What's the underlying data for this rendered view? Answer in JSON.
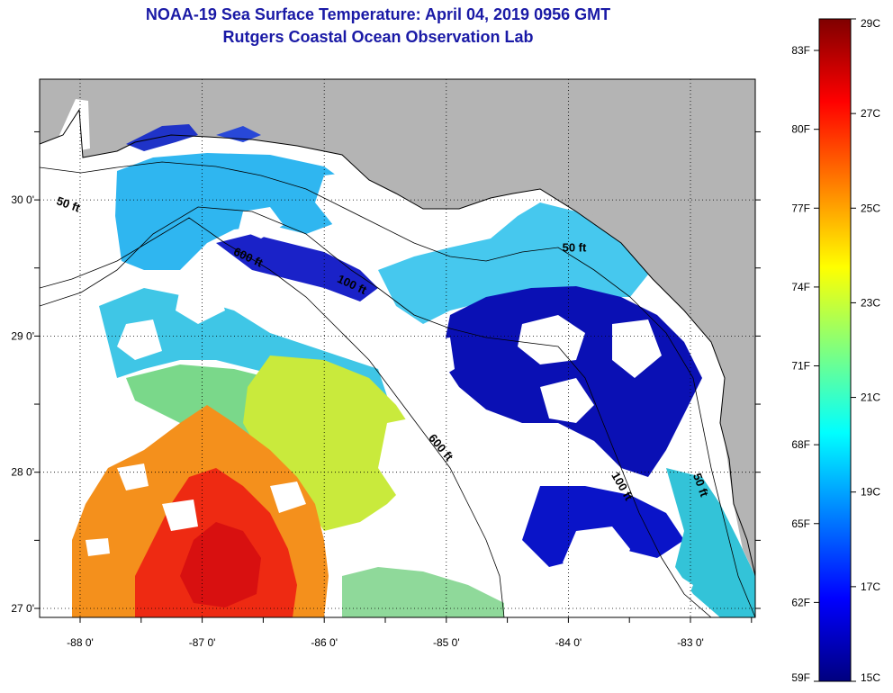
{
  "title": "NOAA-19 Sea Surface Temperature:  April 04, 2019 0956 GMT",
  "subtitle": "Rutgers Coastal Ocean Observation Lab",
  "map": {
    "lon_range": [
      -88.5,
      -82.5
    ],
    "lat_range": [
      26.97,
      29.97
    ],
    "lon_ticks": [
      "-88 0'",
      "-87 0'",
      "-86 0'",
      "-85 0'",
      "-84 0'",
      "-83 0'"
    ],
    "lat_ticks": [
      "30 0'",
      "29 0'",
      "28 0'",
      "27 0'"
    ],
    "contour_labels": [
      {
        "text": "50 ft",
        "lon": -88.2,
        "lat": 29.97
      },
      {
        "text": "600 ft",
        "lon": -86.75,
        "lat": 29.6
      },
      {
        "text": "100 ft",
        "lon": -85.9,
        "lat": 29.4
      },
      {
        "text": "50 ft",
        "lon": -84.05,
        "lat": 29.62
      },
      {
        "text": "600 ft",
        "lon": -85.15,
        "lat": 28.25
      },
      {
        "text": "100 ft",
        "lon": -83.65,
        "lat": 27.98
      },
      {
        "text": "50 ft",
        "lon": -82.98,
        "lat": 27.98
      }
    ],
    "colors": {
      "land": "#b4b4b4",
      "cloud": "#ffffff",
      "coast": "#000000"
    }
  },
  "colorbar": {
    "fahrenheit_labels": [
      "83F",
      "80F",
      "77F",
      "74F",
      "71F",
      "68F",
      "65F",
      "62F",
      "59F"
    ],
    "celsius_labels": [
      "29C",
      "27C",
      "25C",
      "23C",
      "21C",
      "19C",
      "17C",
      "15C"
    ],
    "range_c": [
      15,
      29
    ],
    "colormap": [
      "#00007f",
      "#0000ff",
      "#007fff",
      "#00ffff",
      "#7fff7f",
      "#ffff00",
      "#ff7f00",
      "#ff0000",
      "#7f0000"
    ]
  }
}
